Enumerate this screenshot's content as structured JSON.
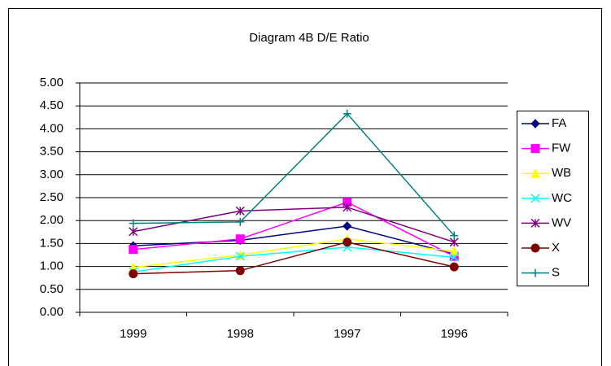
{
  "chart_data": {
    "type": "line",
    "title": "Diagram 4B  D/E Ratio",
    "categories": [
      "1999",
      "1998",
      "1997",
      "1996"
    ],
    "series": [
      {
        "name": "FA",
        "color": "#000080",
        "marker": "diamond",
        "values": [
          1.45,
          1.57,
          1.88,
          1.27
        ]
      },
      {
        "name": "FW",
        "color": "#ff00ff",
        "marker": "square",
        "values": [
          1.37,
          1.6,
          2.4,
          1.22
        ]
      },
      {
        "name": "WB",
        "color": "#ffff00",
        "marker": "triangle",
        "values": [
          0.98,
          1.25,
          1.6,
          1.33
        ]
      },
      {
        "name": "WC",
        "color": "#00ffff",
        "marker": "x",
        "values": [
          0.88,
          1.22,
          1.42,
          1.2
        ]
      },
      {
        "name": "WV",
        "color": "#800080",
        "marker": "asterisk",
        "values": [
          1.76,
          2.21,
          2.29,
          1.53
        ]
      },
      {
        "name": "X",
        "color": "#800000",
        "marker": "circle",
        "values": [
          0.84,
          0.91,
          1.53,
          0.99
        ]
      },
      {
        "name": "S",
        "color": "#008080",
        "marker": "plus",
        "values": [
          1.94,
          1.97,
          4.33,
          1.67
        ]
      }
    ],
    "ylim": [
      0,
      5
    ],
    "yticks": [
      {
        "value": 0,
        "label": "0.00"
      },
      {
        "value": 0.5,
        "label": "0.50"
      },
      {
        "value": 1,
        "label": "1.00"
      },
      {
        "value": 1.5,
        "label": "1.50"
      },
      {
        "value": 2,
        "label": "2.00"
      },
      {
        "value": 2.5,
        "label": "2.50"
      },
      {
        "value": 3,
        "label": "3.00"
      },
      {
        "value": 3.5,
        "label": "3.50"
      },
      {
        "value": 4,
        "label": "4.00"
      },
      {
        "value": 4.5,
        "label": "4.50"
      },
      {
        "value": 5,
        "label": "5.00"
      }
    ],
    "grid": true,
    "legend": "right"
  }
}
